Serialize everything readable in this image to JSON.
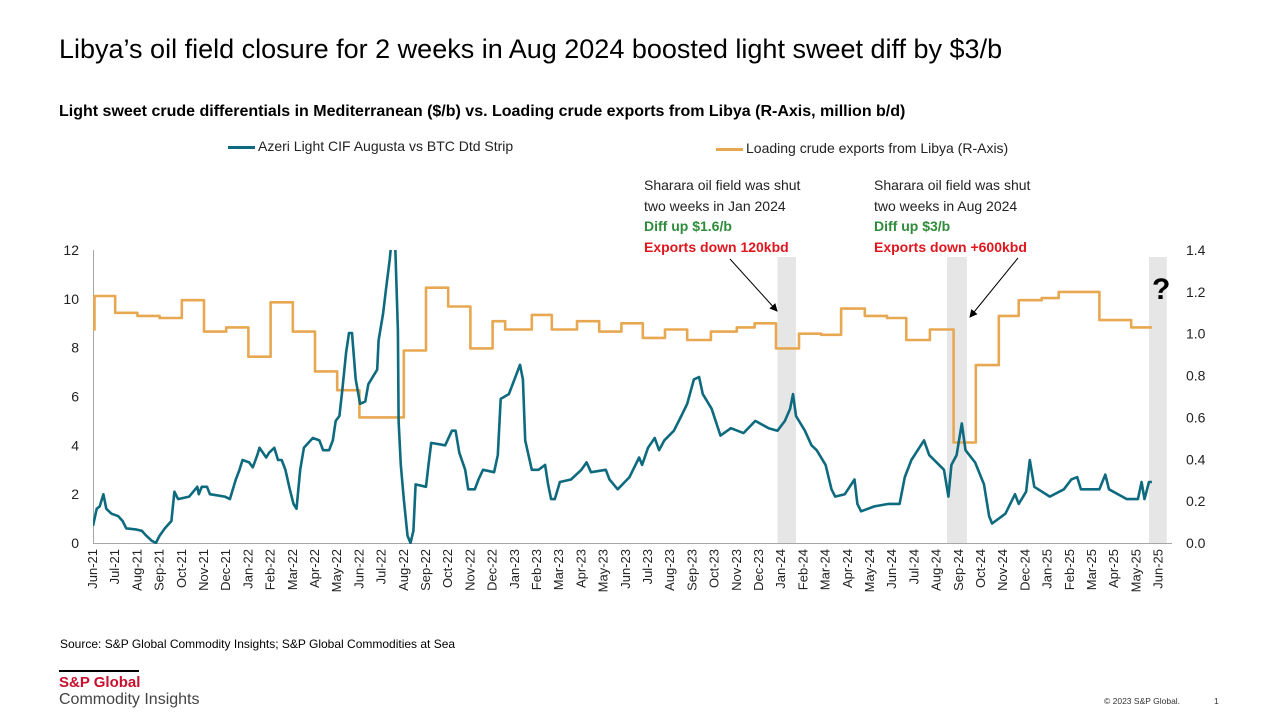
{
  "title": "Libya’s oil field closure for 2 weeks in Aug 2024 boosted light sweet diff by $3/b",
  "footer": {
    "source": "Source: S&P Global Commodity Insights; S&P Global Commodities at Sea",
    "logo_top": "S&P Global",
    "logo_bottom": "Commodity Insights",
    "copyright": "© 2023 S&P Global.",
    "page_number": "1"
  },
  "colors": {
    "diff": "#0e6a7e",
    "exports": "#e8a851",
    "shade": "#e6e6e6",
    "green": "#2e8b3a",
    "red": "#e0161e"
  },
  "chart_data": {
    "type": "line",
    "title": "Light sweet crude differentials in Mediterranean ($/b) vs. Loading crude exports from Libya (R-Axis, million b/d)",
    "legend_placement": "top",
    "grid": false,
    "x_tick_labels": [
      "Jun-21",
      "Jul-21",
      "Aug-21",
      "Sep-21",
      "Oct-21",
      "Nov-21",
      "Dec-21",
      "Jan-22",
      "Feb-22",
      "Mar-22",
      "Apr-22",
      "May-22",
      "Jun-22",
      "Jul-22",
      "Aug-22",
      "Sep-22",
      "Oct-22",
      "Nov-22",
      "Dec-22",
      "Jan-23",
      "Feb-23",
      "Mar-23",
      "Apr-23",
      "May-23",
      "Jun-23",
      "Jul-23",
      "Aug-23",
      "Sep-23",
      "Oct-23",
      "Nov-23",
      "Dec-23",
      "Jan-24",
      "Feb-24",
      "Mar-24",
      "Apr-24",
      "May-24",
      "Jun-24",
      "Jul-24",
      "Aug-24",
      "Sep-24",
      "Oct-24",
      "Nov-24",
      "Dec-24",
      "Jan-25",
      "Feb-25",
      "Mar-25",
      "Apr-25",
      "May-25",
      "Jun-25"
    ],
    "xlim": [
      "2021-06-01",
      "2025-06-01"
    ],
    "y_left": {
      "range": [
        0,
        12
      ],
      "ticks": [
        "0",
        "2",
        "4",
        "6",
        "8",
        "10",
        "12"
      ]
    },
    "y_right": {
      "range": [
        0,
        1.4
      ],
      "ticks": [
        "0.0",
        "0.2",
        "0.4",
        "0.6",
        "0.8",
        "1.0",
        "1.2",
        "1.4"
      ]
    },
    "series": [
      {
        "name": "Azeri Light CIF Augusta vs BTC Dtd Strip",
        "axis": "left",
        "points": [
          [
            "2021-06-01",
            0.7
          ],
          [
            "2021-06-06",
            1.4
          ],
          [
            "2021-06-10",
            1.5
          ],
          [
            "2021-06-15",
            2.0
          ],
          [
            "2021-06-19",
            1.4
          ],
          [
            "2021-06-26",
            1.2
          ],
          [
            "2021-07-05",
            1.1
          ],
          [
            "2021-07-11",
            0.9
          ],
          [
            "2021-07-16",
            0.6
          ],
          [
            "2021-07-30",
            0.55
          ],
          [
            "2021-08-07",
            0.5
          ],
          [
            "2021-08-13",
            0.3
          ],
          [
            "2021-08-20",
            0.1
          ],
          [
            "2021-08-26",
            0.0
          ],
          [
            "2021-09-01",
            0.3
          ],
          [
            "2021-09-08",
            0.6
          ],
          [
            "2021-09-17",
            0.9
          ],
          [
            "2021-09-21",
            2.1
          ],
          [
            "2021-09-26",
            1.8
          ],
          [
            "2021-10-11",
            1.9
          ],
          [
            "2021-10-22",
            2.3
          ],
          [
            "2021-10-24",
            2.0
          ],
          [
            "2021-10-28",
            2.3
          ],
          [
            "2021-11-05",
            2.3
          ],
          [
            "2021-11-09",
            2.0
          ],
          [
            "2021-11-29",
            1.9
          ],
          [
            "2021-12-06",
            1.8
          ],
          [
            "2021-12-14",
            2.6
          ],
          [
            "2021-12-19",
            3.0
          ],
          [
            "2021-12-23",
            3.4
          ],
          [
            "2022-01-02",
            3.3
          ],
          [
            "2022-01-07",
            3.1
          ],
          [
            "2022-01-13",
            3.6
          ],
          [
            "2022-01-16",
            3.9
          ],
          [
            "2022-01-25",
            3.5
          ],
          [
            "2022-01-29",
            3.7
          ],
          [
            "2022-02-06",
            3.9
          ],
          [
            "2022-02-11",
            3.4
          ],
          [
            "2022-02-16",
            3.4
          ],
          [
            "2022-02-21",
            3.0
          ],
          [
            "2022-02-27",
            2.2
          ],
          [
            "2022-03-02",
            1.6
          ],
          [
            "2022-03-06",
            1.4
          ],
          [
            "2022-03-11",
            3.0
          ],
          [
            "2022-03-16",
            3.9
          ],
          [
            "2022-03-28",
            4.3
          ],
          [
            "2022-04-07",
            4.2
          ],
          [
            "2022-04-12",
            3.8
          ],
          [
            "2022-04-20",
            3.8
          ],
          [
            "2022-04-25",
            4.2
          ],
          [
            "2022-04-29",
            5.0
          ],
          [
            "2022-05-04",
            5.2
          ],
          [
            "2022-05-08",
            6.3
          ],
          [
            "2022-05-13",
            7.8
          ],
          [
            "2022-05-17",
            8.6
          ],
          [
            "2022-05-21",
            8.6
          ],
          [
            "2022-05-26",
            6.7
          ],
          [
            "2022-06-02",
            5.7
          ],
          [
            "2022-06-09",
            5.8
          ],
          [
            "2022-06-13",
            6.5
          ],
          [
            "2022-06-25",
            7.1
          ],
          [
            "2022-06-27",
            8.3
          ],
          [
            "2022-07-03",
            9.4
          ],
          [
            "2022-07-07",
            10.4
          ],
          [
            "2022-07-12",
            11.6
          ],
          [
            "2022-07-15",
            12.6
          ],
          [
            "2022-07-19",
            12.6
          ],
          [
            "2022-07-23",
            8.7
          ],
          [
            "2022-07-24",
            5.0
          ],
          [
            "2022-07-27",
            3.2
          ],
          [
            "2022-08-01",
            1.8
          ],
          [
            "2022-08-06",
            0.3
          ],
          [
            "2022-08-10",
            0.0
          ],
          [
            "2022-08-14",
            0.5
          ],
          [
            "2022-08-17",
            2.4
          ],
          [
            "2022-09-01",
            2.3
          ],
          [
            "2022-09-04",
            3.1
          ],
          [
            "2022-09-08",
            4.1
          ],
          [
            "2022-09-27",
            4.0
          ],
          [
            "2022-10-06",
            4.6
          ],
          [
            "2022-10-11",
            4.6
          ],
          [
            "2022-10-16",
            3.7
          ],
          [
            "2022-10-24",
            3.0
          ],
          [
            "2022-10-28",
            2.2
          ],
          [
            "2022-11-07",
            2.2
          ],
          [
            "2022-11-12",
            2.6
          ],
          [
            "2022-11-18",
            3.0
          ],
          [
            "2022-12-03",
            2.9
          ],
          [
            "2022-12-08",
            3.6
          ],
          [
            "2022-12-12",
            5.9
          ],
          [
            "2022-12-23",
            6.1
          ],
          [
            "2023-01-08",
            7.3
          ],
          [
            "2023-01-12",
            6.7
          ],
          [
            "2023-01-15",
            4.2
          ],
          [
            "2023-01-24",
            3.0
          ],
          [
            "2023-02-03",
            3.0
          ],
          [
            "2023-02-12",
            3.2
          ],
          [
            "2023-02-16",
            2.4
          ],
          [
            "2023-02-20",
            1.8
          ],
          [
            "2023-02-25",
            1.8
          ],
          [
            "2023-03-02",
            2.5
          ],
          [
            "2023-03-17",
            2.6
          ],
          [
            "2023-04-01",
            3.0
          ],
          [
            "2023-04-08",
            3.3
          ],
          [
            "2023-04-14",
            2.9
          ],
          [
            "2023-05-04",
            3.0
          ],
          [
            "2023-05-09",
            2.6
          ],
          [
            "2023-05-20",
            2.2
          ],
          [
            "2023-06-06",
            2.7
          ],
          [
            "2023-06-19",
            3.5
          ],
          [
            "2023-06-23",
            3.2
          ],
          [
            "2023-07-01",
            3.9
          ],
          [
            "2023-07-10",
            4.3
          ],
          [
            "2023-07-16",
            3.8
          ],
          [
            "2023-07-23",
            4.2
          ],
          [
            "2023-08-06",
            4.6
          ],
          [
            "2023-08-16",
            5.2
          ],
          [
            "2023-08-24",
            5.7
          ],
          [
            "2023-09-03",
            6.7
          ],
          [
            "2023-09-10",
            6.8
          ],
          [
            "2023-09-15",
            6.1
          ],
          [
            "2023-09-27",
            5.5
          ],
          [
            "2023-10-09",
            4.4
          ],
          [
            "2023-10-23",
            4.7
          ],
          [
            "2023-11-10",
            4.5
          ],
          [
            "2023-11-26",
            5.0
          ],
          [
            "2023-12-14",
            4.7
          ],
          [
            "2023-12-26",
            4.6
          ],
          [
            "2024-01-06",
            5.0
          ],
          [
            "2024-01-13",
            5.5
          ],
          [
            "2024-01-17",
            6.1
          ],
          [
            "2024-01-21",
            5.2
          ],
          [
            "2024-02-03",
            4.6
          ],
          [
            "2024-02-12",
            4.0
          ],
          [
            "2024-02-19",
            3.8
          ],
          [
            "2024-03-01",
            3.2
          ],
          [
            "2024-03-09",
            2.2
          ],
          [
            "2024-03-14",
            1.9
          ],
          [
            "2024-03-27",
            2.0
          ],
          [
            "2024-04-10",
            2.6
          ],
          [
            "2024-04-14",
            1.6
          ],
          [
            "2024-04-19",
            1.3
          ],
          [
            "2024-05-07",
            1.5
          ],
          [
            "2024-05-26",
            1.6
          ],
          [
            "2024-06-11",
            1.6
          ],
          [
            "2024-06-18",
            2.7
          ],
          [
            "2024-06-27",
            3.4
          ],
          [
            "2024-07-14",
            4.2
          ],
          [
            "2024-07-21",
            3.6
          ],
          [
            "2024-08-11",
            3.0
          ],
          [
            "2024-08-17",
            1.9
          ],
          [
            "2024-08-21",
            3.2
          ],
          [
            "2024-08-28",
            3.6
          ],
          [
            "2024-09-05",
            4.9
          ],
          [
            "2024-09-10",
            3.8
          ],
          [
            "2024-09-23",
            3.3
          ],
          [
            "2024-10-05",
            2.4
          ],
          [
            "2024-10-12",
            1.1
          ],
          [
            "2024-10-16",
            0.8
          ],
          [
            "2024-11-04",
            1.2
          ],
          [
            "2024-11-17",
            2.0
          ],
          [
            "2024-11-22",
            1.6
          ],
          [
            "2024-12-02",
            2.1
          ],
          [
            "2024-12-07",
            3.4
          ],
          [
            "2024-12-13",
            2.3
          ],
          [
            "2025-01-04",
            1.9
          ],
          [
            "2025-01-23",
            2.2
          ],
          [
            "2025-02-03",
            2.6
          ],
          [
            "2025-02-11",
            2.7
          ],
          [
            "2025-02-16",
            2.2
          ],
          [
            "2025-03-11",
            2.2
          ],
          [
            "2025-03-19",
            2.8
          ],
          [
            "2025-03-24",
            2.2
          ],
          [
            "2025-04-18",
            1.8
          ],
          [
            "2025-05-03",
            1.8
          ],
          [
            "2025-05-08",
            2.5
          ],
          [
            "2025-05-12",
            1.8
          ],
          [
            "2025-05-18",
            2.5
          ],
          [
            "2025-05-22",
            2.5
          ]
        ]
      },
      {
        "name": "Loading crude exports from Libya (R-Axis)",
        "axis": "right",
        "step": true,
        "points": [
          [
            "2021-06-01",
            1.02
          ],
          [
            "2021-06-03",
            1.18
          ],
          [
            "2021-07-01",
            1.1
          ],
          [
            "2021-08-01",
            1.085
          ],
          [
            "2021-09-01",
            1.075
          ],
          [
            "2021-10-01",
            1.16
          ],
          [
            "2021-11-01",
            1.01
          ],
          [
            "2021-12-01",
            1.03
          ],
          [
            "2022-01-01",
            0.89
          ],
          [
            "2022-02-01",
            1.15
          ],
          [
            "2022-03-01",
            1.01
          ],
          [
            "2022-04-01",
            0.82
          ],
          [
            "2022-05-01",
            0.73
          ],
          [
            "2022-06-01",
            0.6
          ],
          [
            "2022-08-01",
            0.92
          ],
          [
            "2022-09-01",
            1.22
          ],
          [
            "2022-10-01",
            1.13
          ],
          [
            "2022-11-01",
            0.93
          ],
          [
            "2022-12-01",
            1.06
          ],
          [
            "2022-12-18",
            1.02
          ],
          [
            "2023-01-24",
            1.09
          ],
          [
            "2023-02-21",
            1.02
          ],
          [
            "2023-03-25",
            1.06
          ],
          [
            "2023-04-25",
            1.01
          ],
          [
            "2023-05-25",
            1.05
          ],
          [
            "2023-06-24",
            0.98
          ],
          [
            "2023-07-24",
            1.02
          ],
          [
            "2023-08-24",
            0.97
          ],
          [
            "2023-09-26",
            1.01
          ],
          [
            "2023-11-01",
            1.03
          ],
          [
            "2023-11-25",
            1.05
          ],
          [
            "2023-12-24",
            0.93
          ],
          [
            "2024-01-25",
            1.0
          ],
          [
            "2024-02-25",
            0.995
          ],
          [
            "2024-03-22",
            1.12
          ],
          [
            "2024-04-24",
            1.085
          ],
          [
            "2024-05-24",
            1.075
          ],
          [
            "2024-06-20",
            0.97
          ],
          [
            "2024-07-22",
            1.02
          ],
          [
            "2024-08-24",
            0.48
          ],
          [
            "2024-09-24",
            0.85
          ],
          [
            "2024-10-25",
            1.085
          ],
          [
            "2024-11-22",
            1.16
          ],
          [
            "2024-12-23",
            1.17
          ],
          [
            "2025-01-16",
            1.2
          ],
          [
            "2025-03-11",
            1.065
          ],
          [
            "2025-04-24",
            1.03
          ],
          [
            "2025-05-22",
            1.03
          ]
        ]
      }
    ],
    "shaded_periods": [
      [
        "2023-12-26",
        "2024-01-21"
      ],
      [
        "2024-08-15",
        "2024-09-12"
      ],
      [
        "2025-05-18",
        "2025-06-12"
      ]
    ],
    "annotations": [
      {
        "lines": [
          "Sharara oil field was shut",
          "two weeks in Jan 2024"
        ],
        "diff": "Diff up $1.6/b",
        "exports": "Exports down 120kbd"
      },
      {
        "lines": [
          "Sharara oil field was shut",
          "two weeks in Aug 2024"
        ],
        "diff": "Diff up $3/b",
        "exports": "Exports down +600kbd"
      }
    ],
    "question_mark": "?"
  }
}
